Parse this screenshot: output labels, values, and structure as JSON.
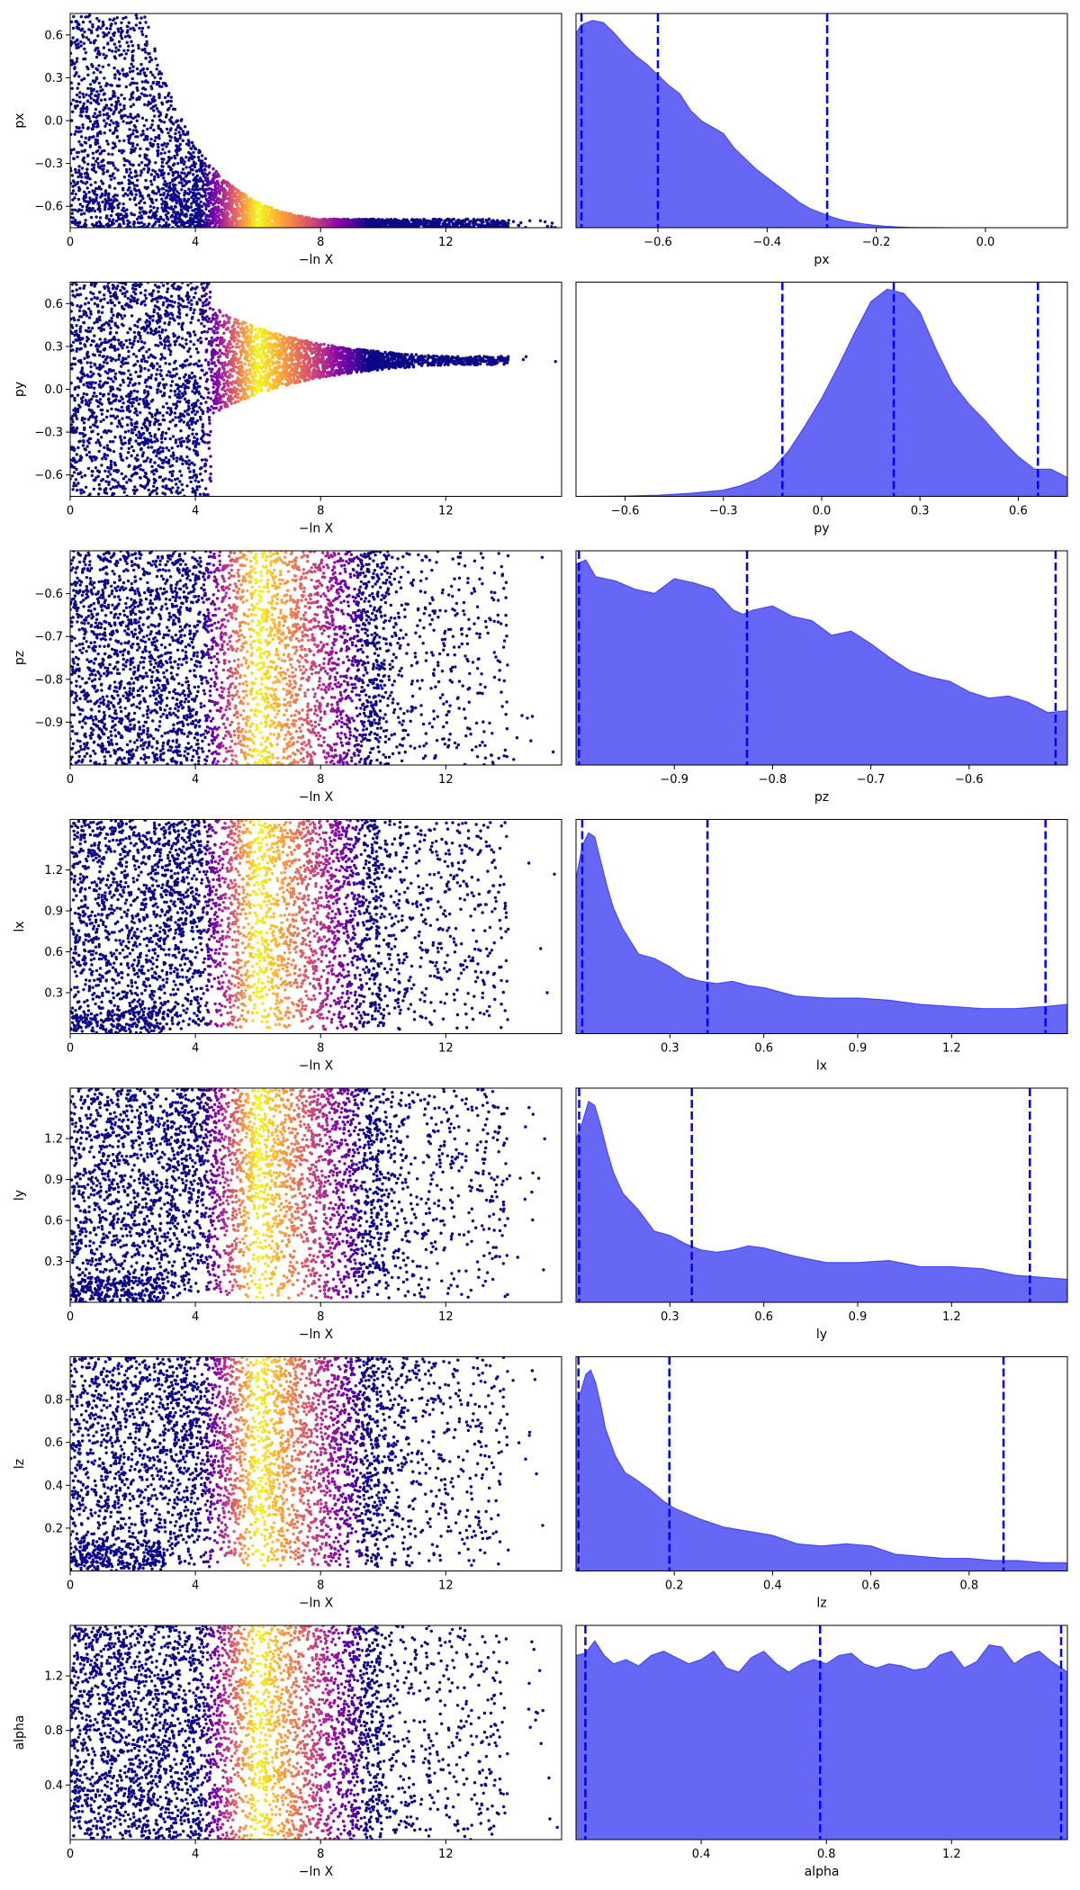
{
  "chart_data": [
    {
      "type": "scatter",
      "param": "px",
      "xlabel": "−ln X",
      "ylabel": "px",
      "xlim": [
        0,
        15.7
      ],
      "ylim": [
        -0.75,
        0.75
      ],
      "xticks": [
        0,
        4,
        8,
        12
      ],
      "xtick_labels": [
        "0",
        "4",
        "8",
        "12"
      ],
      "yticks": [
        -0.6,
        -0.3,
        0.0,
        0.3,
        0.6
      ],
      "ytick_labels": [
        "−0.6",
        "−0.3",
        "0.0",
        "0.3",
        "0.6"
      ],
      "colormap": "plasma",
      "shape": "funnel-down"
    },
    {
      "type": "area",
      "param": "px",
      "xlabel": "px",
      "xlim": [
        -0.75,
        0.15
      ],
      "xticks": [
        -0.6,
        -0.4,
        -0.2,
        0.0
      ],
      "xtick_labels": [
        "−0.6",
        "−0.4",
        "−0.2",
        "0.0"
      ],
      "quantile_lines": [
        -0.74,
        -0.6,
        -0.29
      ],
      "density_x": [
        -0.75,
        -0.74,
        -0.72,
        -0.7,
        -0.68,
        -0.66,
        -0.64,
        -0.62,
        -0.6,
        -0.58,
        -0.56,
        -0.54,
        -0.52,
        -0.5,
        -0.48,
        -0.46,
        -0.44,
        -0.42,
        -0.4,
        -0.38,
        -0.36,
        -0.34,
        -0.32,
        -0.3,
        -0.28,
        -0.26,
        -0.24,
        -0.22,
        -0.2,
        -0.18,
        -0.16,
        -0.14,
        -0.12,
        -0.1,
        -0.05,
        0.0,
        0.05,
        0.1,
        0.15
      ],
      "density_y": [
        0.93,
        0.97,
        0.99,
        0.98,
        0.93,
        0.87,
        0.82,
        0.78,
        0.73,
        0.68,
        0.64,
        0.56,
        0.51,
        0.48,
        0.45,
        0.38,
        0.33,
        0.28,
        0.24,
        0.2,
        0.16,
        0.12,
        0.09,
        0.07,
        0.05,
        0.035,
        0.025,
        0.017,
        0.011,
        0.007,
        0.004,
        0.002,
        0.001,
        0.001,
        0.0,
        0.0,
        0.0,
        0.0,
        0.0
      ],
      "color": "#5a5af5",
      "line_color": "#0000ff"
    },
    {
      "type": "scatter",
      "param": "py",
      "xlabel": "−ln X",
      "ylabel": "py",
      "xlim": [
        0,
        15.7
      ],
      "ylim": [
        -0.75,
        0.75
      ],
      "xticks": [
        0,
        4,
        8,
        12
      ],
      "xtick_labels": [
        "0",
        "4",
        "8",
        "12"
      ],
      "yticks": [
        -0.6,
        -0.3,
        0.0,
        0.3,
        0.6
      ],
      "ytick_labels": [
        "−0.6",
        "−0.3",
        "0.0",
        "0.3",
        "0.6"
      ],
      "colormap": "plasma",
      "shape": "funnel-center"
    },
    {
      "type": "area",
      "param": "py",
      "xlabel": "py",
      "xlim": [
        -0.75,
        0.75
      ],
      "xticks": [
        -0.6,
        -0.3,
        0.0,
        0.3,
        0.6
      ],
      "xtick_labels": [
        "−0.6",
        "−0.3",
        "0.0",
        "0.3",
        "0.6"
      ],
      "quantile_lines": [
        -0.12,
        0.22,
        0.66
      ],
      "density_x": [
        -0.75,
        -0.6,
        -0.5,
        -0.4,
        -0.3,
        -0.25,
        -0.2,
        -0.15,
        -0.1,
        -0.05,
        0.0,
        0.05,
        0.1,
        0.15,
        0.2,
        0.25,
        0.3,
        0.35,
        0.4,
        0.45,
        0.5,
        0.55,
        0.6,
        0.65,
        0.7,
        0.75
      ],
      "density_y": [
        0.0,
        0.002,
        0.006,
        0.015,
        0.03,
        0.05,
        0.08,
        0.13,
        0.22,
        0.34,
        0.47,
        0.62,
        0.78,
        0.93,
        0.99,
        0.97,
        0.88,
        0.7,
        0.54,
        0.44,
        0.36,
        0.27,
        0.19,
        0.13,
        0.13,
        0.09
      ],
      "color": "#5a5af5",
      "line_color": "#0000ff"
    },
    {
      "type": "scatter",
      "param": "pz",
      "xlabel": "−ln X",
      "ylabel": "pz",
      "xlim": [
        0,
        15.7
      ],
      "ylim": [
        -1.0,
        -0.5
      ],
      "xticks": [
        0,
        4,
        8,
        12
      ],
      "xtick_labels": [
        "0",
        "4",
        "8",
        "12"
      ],
      "yticks": [
        -0.9,
        -0.8,
        -0.7,
        -0.6
      ],
      "ytick_labels": [
        "−0.9",
        "−0.8",
        "−0.7",
        "−0.6"
      ],
      "colormap": "plasma",
      "shape": "uniform"
    },
    {
      "type": "area",
      "param": "pz",
      "xlabel": "pz",
      "xlim": [
        -1.0,
        -0.5
      ],
      "xticks": [
        -0.9,
        -0.8,
        -0.7,
        -0.6
      ],
      "xtick_labels": [
        "−0.9",
        "−0.8",
        "−0.7",
        "−0.6"
      ],
      "quantile_lines": [
        -0.997,
        -0.826,
        -0.512
      ],
      "density_x": [
        -1.0,
        -0.99,
        -0.98,
        -0.96,
        -0.94,
        -0.92,
        -0.9,
        -0.88,
        -0.86,
        -0.84,
        -0.83,
        -0.82,
        -0.8,
        -0.78,
        -0.76,
        -0.74,
        -0.72,
        -0.7,
        -0.68,
        -0.66,
        -0.64,
        -0.62,
        -0.6,
        -0.58,
        -0.56,
        -0.54,
        -0.52,
        -0.5
      ],
      "density_y": [
        0.96,
        0.98,
        0.9,
        0.88,
        0.84,
        0.82,
        0.89,
        0.87,
        0.84,
        0.74,
        0.72,
        0.74,
        0.76,
        0.71,
        0.69,
        0.62,
        0.64,
        0.58,
        0.51,
        0.45,
        0.42,
        0.4,
        0.35,
        0.32,
        0.33,
        0.3,
        0.25,
        0.26
      ],
      "color": "#5a5af5",
      "line_color": "#0000ff"
    },
    {
      "type": "scatter",
      "param": "lx",
      "xlabel": "−ln X",
      "ylabel": "lx",
      "xlim": [
        0,
        15.7
      ],
      "ylim": [
        0.0,
        1.57
      ],
      "xticks": [
        0,
        4,
        8,
        12
      ],
      "xtick_labels": [
        "0",
        "4",
        "8",
        "12"
      ],
      "yticks": [
        0.3,
        0.6,
        0.9,
        1.2
      ],
      "ytick_labels": [
        "0.3",
        "0.6",
        "0.9",
        "1.2"
      ],
      "colormap": "plasma",
      "shape": "uniform-bottom"
    },
    {
      "type": "area",
      "param": "lx",
      "xlabel": "lx",
      "xlim": [
        0.0,
        1.57
      ],
      "xticks": [
        0.3,
        0.6,
        0.9,
        1.2
      ],
      "xtick_labels": [
        "0.3",
        "0.6",
        "0.9",
        "1.2"
      ],
      "quantile_lines": [
        0.02,
        0.42,
        1.5
      ],
      "density_x": [
        0.0,
        0.02,
        0.04,
        0.06,
        0.08,
        0.1,
        0.12,
        0.15,
        0.2,
        0.25,
        0.3,
        0.35,
        0.4,
        0.45,
        0.5,
        0.55,
        0.6,
        0.7,
        0.8,
        0.9,
        1.0,
        1.1,
        1.2,
        1.3,
        1.4,
        1.5,
        1.57
      ],
      "density_y": [
        0.74,
        0.9,
        0.96,
        0.94,
        0.82,
        0.7,
        0.6,
        0.5,
        0.38,
        0.36,
        0.32,
        0.27,
        0.25,
        0.24,
        0.25,
        0.23,
        0.22,
        0.18,
        0.17,
        0.17,
        0.16,
        0.14,
        0.13,
        0.12,
        0.12,
        0.13,
        0.14
      ],
      "color": "#5a5af5",
      "line_color": "#0000ff"
    },
    {
      "type": "scatter",
      "param": "ly",
      "xlabel": "−ln X",
      "ylabel": "ly",
      "xlim": [
        0,
        15.7
      ],
      "ylim": [
        0.0,
        1.57
      ],
      "xticks": [
        0,
        4,
        8,
        12
      ],
      "xtick_labels": [
        "0",
        "4",
        "8",
        "12"
      ],
      "yticks": [
        0.3,
        0.6,
        0.9,
        1.2
      ],
      "ytick_labels": [
        "0.3",
        "0.6",
        "0.9",
        "1.2"
      ],
      "colormap": "plasma",
      "shape": "uniform-bottom"
    },
    {
      "type": "area",
      "param": "ly",
      "xlabel": "ly",
      "xlim": [
        0.0,
        1.57
      ],
      "xticks": [
        0.3,
        0.6,
        0.9,
        1.2
      ],
      "xtick_labels": [
        "0.3",
        "0.6",
        "0.9",
        "1.2"
      ],
      "quantile_lines": [
        0.01,
        0.37,
        1.45
      ],
      "density_x": [
        0.0,
        0.02,
        0.04,
        0.06,
        0.08,
        0.1,
        0.12,
        0.15,
        0.2,
        0.25,
        0.3,
        0.35,
        0.4,
        0.45,
        0.5,
        0.55,
        0.6,
        0.65,
        0.7,
        0.8,
        0.9,
        1.0,
        1.1,
        1.2,
        1.3,
        1.4,
        1.57
      ],
      "density_y": [
        0.78,
        0.86,
        0.96,
        0.94,
        0.84,
        0.72,
        0.62,
        0.52,
        0.44,
        0.34,
        0.32,
        0.28,
        0.25,
        0.24,
        0.25,
        0.27,
        0.26,
        0.24,
        0.22,
        0.19,
        0.19,
        0.2,
        0.17,
        0.17,
        0.16,
        0.13,
        0.11
      ],
      "color": "#5a5af5",
      "line_color": "#0000ff"
    },
    {
      "type": "scatter",
      "param": "lz",
      "xlabel": "−ln X",
      "ylabel": "lz",
      "xlim": [
        0,
        15.7
      ],
      "ylim": [
        0.0,
        1.0
      ],
      "xticks": [
        0,
        4,
        8,
        12
      ],
      "xtick_labels": [
        "0",
        "4",
        "8",
        "12"
      ],
      "yticks": [
        0.2,
        0.4,
        0.6,
        0.8
      ],
      "ytick_labels": [
        "0.2",
        "0.4",
        "0.6",
        "0.8"
      ],
      "colormap": "plasma",
      "shape": "uniform-bottom"
    },
    {
      "type": "area",
      "param": "lz",
      "xlabel": "lz",
      "xlim": [
        0.0,
        1.0
      ],
      "xticks": [
        0.2,
        0.4,
        0.6,
        0.8
      ],
      "xtick_labels": [
        "0.2",
        "0.4",
        "0.6",
        "0.8"
      ],
      "quantile_lines": [
        0.005,
        0.19,
        0.87
      ],
      "density_x": [
        0.0,
        0.01,
        0.02,
        0.03,
        0.04,
        0.05,
        0.06,
        0.08,
        0.1,
        0.12,
        0.15,
        0.18,
        0.2,
        0.25,
        0.3,
        0.35,
        0.4,
        0.45,
        0.5,
        0.55,
        0.6,
        0.65,
        0.7,
        0.75,
        0.8,
        0.85,
        0.9,
        0.95,
        1.0
      ],
      "density_y": [
        0.8,
        0.86,
        0.94,
        0.96,
        0.9,
        0.8,
        0.68,
        0.55,
        0.47,
        0.44,
        0.39,
        0.33,
        0.3,
        0.25,
        0.21,
        0.19,
        0.17,
        0.13,
        0.12,
        0.13,
        0.12,
        0.08,
        0.07,
        0.06,
        0.06,
        0.05,
        0.05,
        0.04,
        0.04
      ],
      "color": "#5a5af5",
      "line_color": "#0000ff"
    },
    {
      "type": "scatter",
      "param": "alpha",
      "xlabel": "−ln X",
      "ylabel": "alpha",
      "xlim": [
        0,
        15.7
      ],
      "ylim": [
        0.0,
        1.57
      ],
      "xticks": [
        0,
        4,
        8,
        12
      ],
      "xtick_labels": [
        "0",
        "4",
        "8",
        "12"
      ],
      "yticks": [
        0.4,
        0.8,
        1.2
      ],
      "ytick_labels": [
        "0.4",
        "0.8",
        "1.2"
      ],
      "colormap": "plasma",
      "shape": "uniform"
    },
    {
      "type": "area",
      "param": "alpha",
      "xlabel": "alpha",
      "xlim": [
        0.0,
        1.57
      ],
      "xticks": [
        0.4,
        0.8,
        1.2
      ],
      "xtick_labels": [
        "0.4",
        "0.8",
        "1.2"
      ],
      "quantile_lines": [
        0.03,
        0.78,
        1.55
      ],
      "density_x": [
        0.0,
        0.03,
        0.06,
        0.09,
        0.12,
        0.16,
        0.2,
        0.24,
        0.28,
        0.32,
        0.36,
        0.4,
        0.44,
        0.48,
        0.52,
        0.56,
        0.6,
        0.64,
        0.68,
        0.72,
        0.76,
        0.8,
        0.84,
        0.88,
        0.92,
        0.96,
        1.0,
        1.04,
        1.08,
        1.12,
        1.16,
        1.2,
        1.24,
        1.28,
        1.32,
        1.36,
        1.4,
        1.44,
        1.48,
        1.52,
        1.57
      ],
      "density_y": [
        0.88,
        0.89,
        0.95,
        0.88,
        0.84,
        0.86,
        0.83,
        0.88,
        0.9,
        0.87,
        0.84,
        0.86,
        0.9,
        0.82,
        0.8,
        0.87,
        0.9,
        0.84,
        0.8,
        0.84,
        0.86,
        0.84,
        0.88,
        0.89,
        0.84,
        0.82,
        0.84,
        0.83,
        0.81,
        0.82,
        0.88,
        0.9,
        0.82,
        0.85,
        0.93,
        0.92,
        0.84,
        0.88,
        0.9,
        0.85,
        0.8
      ],
      "color": "#5a5af5",
      "line_color": "#0000ff"
    }
  ]
}
